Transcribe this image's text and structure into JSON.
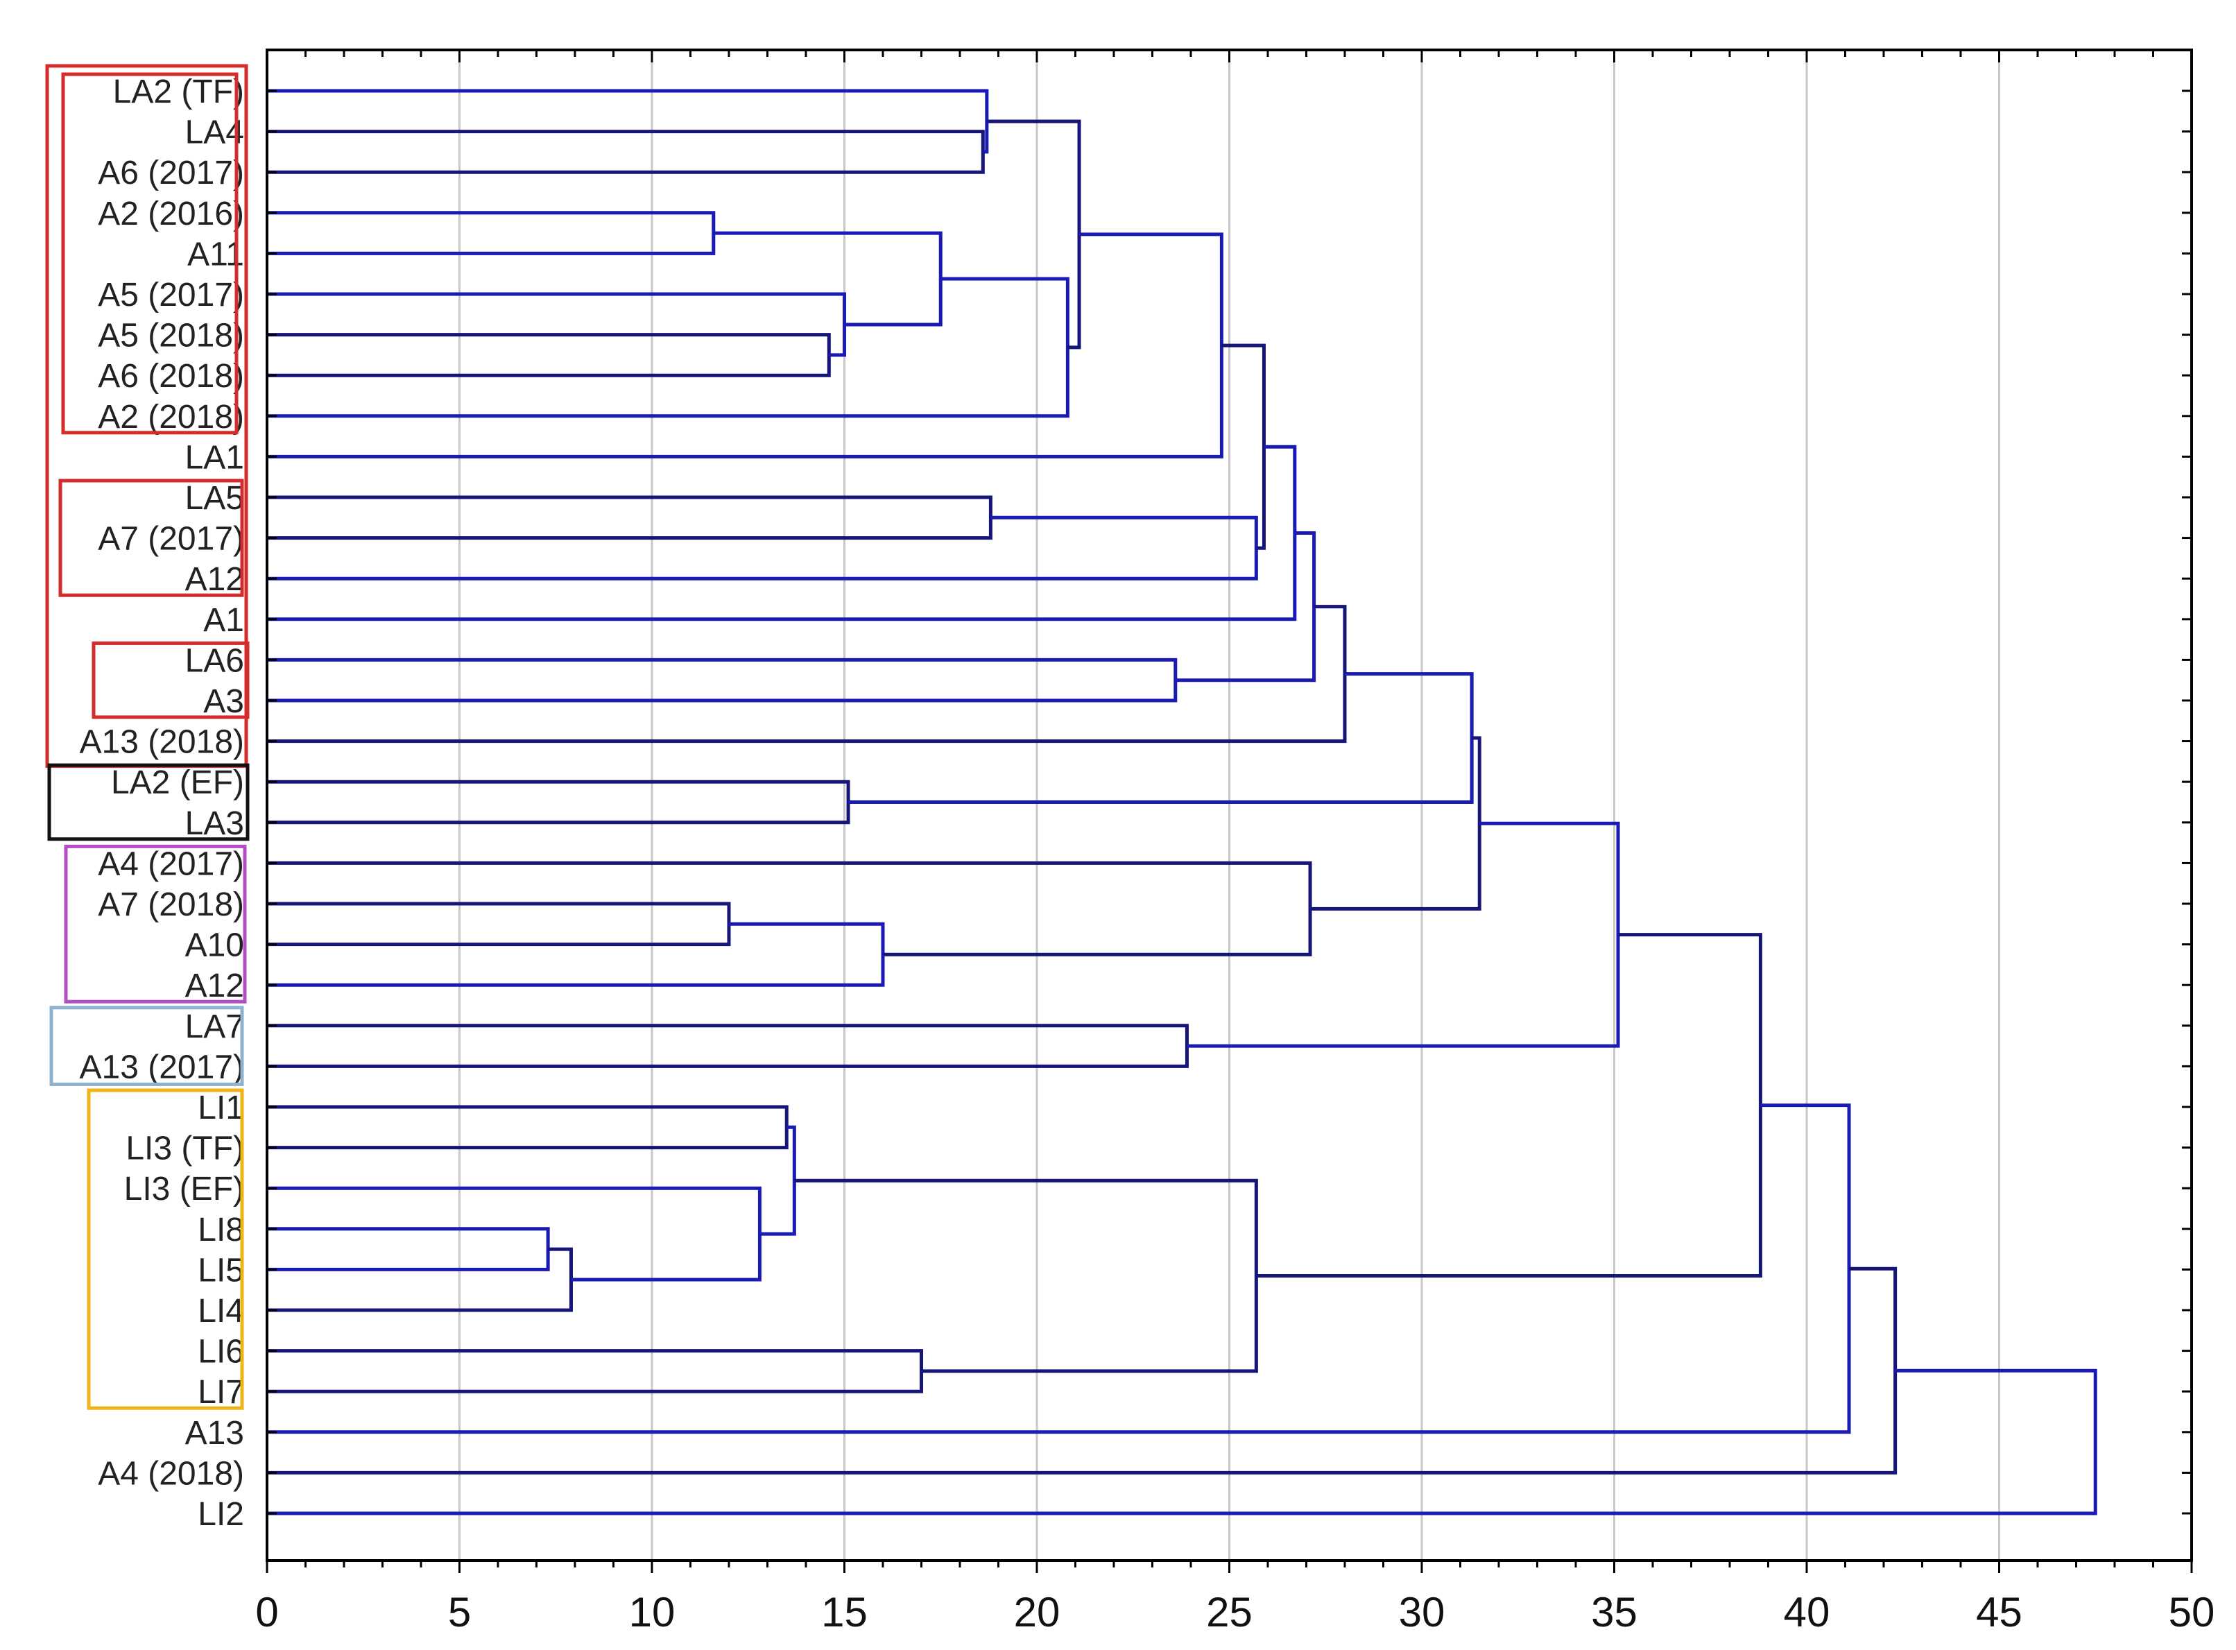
{
  "chart_data": {
    "type": "dendrogram",
    "title": "",
    "xlabel": "",
    "ylabel": "",
    "xlim": [
      0,
      50
    ],
    "grid": true,
    "x_ticks": [
      0,
      5,
      10,
      15,
      20,
      25,
      30,
      35,
      40,
      45,
      50
    ],
    "leaves": [
      "LA2 (TF)",
      "LA4",
      "A6 (2017)",
      "A2 (2016)",
      "A11",
      "A5 (2017)",
      "A5 (2018)",
      "A6 (2018)",
      "A2 (2018)",
      "LA1",
      "LA5",
      "A7 (2017)",
      "A12",
      "A1",
      "LA6",
      "A3",
      "A13 (2018)",
      "LA2  (EF)",
      "LA3",
      "A4 (2017)",
      "A7 (2018)",
      "A10",
      "A12",
      "LA7",
      "A13 (2017)",
      "LI1",
      "LI3 (TF)",
      "LI3 (EF)",
      "LI8",
      "LI5",
      "LI4",
      "LI6",
      "LI7",
      "A13",
      "A4 (2018)",
      "LI2"
    ],
    "merges": [
      {
        "id": "m1",
        "children": [
          "L29",
          "L30"
        ],
        "height": 7.3
      },
      {
        "id": "m2",
        "children": [
          "m1",
          "L31"
        ],
        "height": 7.9
      },
      {
        "id": "m3",
        "children": [
          "L4",
          "L5"
        ],
        "height": 11.6
      },
      {
        "id": "m4",
        "children": [
          "L21",
          "L22"
        ],
        "height": 12.0
      },
      {
        "id": "m5",
        "children": [
          "L28",
          "m2"
        ],
        "height": 12.8
      },
      {
        "id": "m6",
        "children": [
          "L26",
          "L27"
        ],
        "height": 13.5
      },
      {
        "id": "m7",
        "children": [
          "m6",
          "m5"
        ],
        "height": 13.7
      },
      {
        "id": "m8",
        "children": [
          "L7",
          "L8"
        ],
        "height": 14.6
      },
      {
        "id": "m9",
        "children": [
          "L6",
          "m8"
        ],
        "height": 15.0
      },
      {
        "id": "m10",
        "children": [
          "L18",
          "L19"
        ],
        "height": 15.1
      },
      {
        "id": "m11",
        "children": [
          "m4",
          "L23"
        ],
        "height": 16.0
      },
      {
        "id": "m12",
        "children": [
          "L32",
          "L33"
        ],
        "height": 17.0
      },
      {
        "id": "m13",
        "children": [
          "m3",
          "m9"
        ],
        "height": 17.5
      },
      {
        "id": "m14",
        "children": [
          "L2",
          "L3"
        ],
        "height": 18.6
      },
      {
        "id": "m15",
        "children": [
          "L1",
          "m14"
        ],
        "height": 18.7
      },
      {
        "id": "m16",
        "children": [
          "L11",
          "L12"
        ],
        "height": 18.8
      },
      {
        "id": "m17",
        "children": [
          "m13",
          "L9"
        ],
        "height": 20.8
      },
      {
        "id": "m18",
        "children": [
          "m15",
          "m17"
        ],
        "height": 21.1
      },
      {
        "id": "m19",
        "children": [
          "L15",
          "L16"
        ],
        "height": 23.6
      },
      {
        "id": "m20",
        "children": [
          "L24",
          "L25"
        ],
        "height": 23.9
      },
      {
        "id": "m21",
        "children": [
          "m18",
          "L10"
        ],
        "height": 24.8
      },
      {
        "id": "m22",
        "children": [
          "m7",
          "m12"
        ],
        "height": 25.7
      },
      {
        "id": "m23",
        "children": [
          "m16",
          "L13"
        ],
        "height": 25.7
      },
      {
        "id": "m24",
        "children": [
          "m21",
          "m23"
        ],
        "height": 25.9
      },
      {
        "id": "m25",
        "children": [
          "m24",
          "L14"
        ],
        "height": 26.7
      },
      {
        "id": "m26",
        "children": [
          "L20",
          "m11"
        ],
        "height": 27.1
      },
      {
        "id": "m27",
        "children": [
          "m25",
          "m19"
        ],
        "height": 27.2
      },
      {
        "id": "m28",
        "children": [
          "m27",
          "L17"
        ],
        "height": 28.0
      },
      {
        "id": "m29",
        "children": [
          "m28",
          "m10"
        ],
        "height": 31.3
      },
      {
        "id": "m30",
        "children": [
          "m29",
          "m26"
        ],
        "height": 31.5
      },
      {
        "id": "m31",
        "children": [
          "m30",
          "m20"
        ],
        "height": 35.1
      },
      {
        "id": "m32",
        "children": [
          "m31",
          "m22"
        ],
        "height": 38.8
      },
      {
        "id": "m33",
        "children": [
          "m32",
          "L34"
        ],
        "height": 41.1
      },
      {
        "id": "m34",
        "children": [
          "m33",
          "L35"
        ],
        "height": 42.3
      },
      {
        "id": "m35",
        "children": [
          "m34",
          "L36"
        ],
        "height": 47.5
      }
    ],
    "group_boxes": [
      {
        "name": "outer-red",
        "color": "#d42b2b",
        "from_leaf": 1,
        "to_leaf": 17
      },
      {
        "name": "inner-red-1",
        "color": "#d42b2b",
        "from_leaf": 1,
        "to_leaf": 9
      },
      {
        "name": "inner-red-2",
        "color": "#d42b2b",
        "from_leaf": 11,
        "to_leaf": 13
      },
      {
        "name": "inner-red-3",
        "color": "#d42b2b",
        "from_leaf": 15,
        "to_leaf": 16
      },
      {
        "name": "black",
        "color": "#111111",
        "from_leaf": 18,
        "to_leaf": 19
      },
      {
        "name": "purple",
        "color": "#b44ec4",
        "from_leaf": 20,
        "to_leaf": 23
      },
      {
        "name": "light-blue",
        "color": "#8fb3cf",
        "from_leaf": 24,
        "to_leaf": 25
      },
      {
        "name": "yellow",
        "color": "#f0b41a",
        "from_leaf": 26,
        "to_leaf": 33
      }
    ],
    "colors": {
      "link": "#1a1ab4",
      "link_alt": "#15157a",
      "grid": "#c8c8c8",
      "axis": "#000000"
    }
  }
}
